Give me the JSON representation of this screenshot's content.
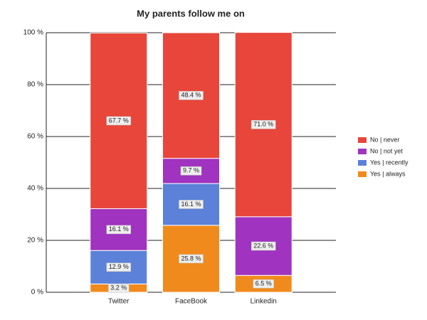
{
  "chart_data": {
    "type": "stacked_bar",
    "title": "My parents follow me on",
    "categories": [
      "Twitter",
      "FaceBook",
      "Linkedin"
    ],
    "series": [
      {
        "name": "Yes | always",
        "color": "#f08a1c",
        "values": [
          3.2,
          25.8,
          6.5
        ],
        "value_labels": [
          "3.2 %",
          "25.8 %",
          "6.5 %"
        ]
      },
      {
        "name": "Yes | recently",
        "color": "#5b82d8",
        "values": [
          12.9,
          16.1,
          null
        ],
        "value_labels": [
          "12.9 %",
          "16.1 %",
          null
        ]
      },
      {
        "name": "No | not yet",
        "color": "#a033c0",
        "values": [
          16.1,
          9.7,
          22.6
        ],
        "value_labels": [
          "16.1 %",
          "9.7 %",
          "22.6 %"
        ]
      },
      {
        "name": "No | never",
        "color": "#e8463a",
        "values": [
          67.7,
          48.4,
          71.0
        ],
        "value_labels": [
          "67.7 %",
          "48.4 %",
          "71.0 %"
        ]
      }
    ],
    "ylim": [
      0,
      100
    ],
    "yticks": [
      {
        "value": 0,
        "label": "0 %"
      },
      {
        "value": 20,
        "label": "20 %"
      },
      {
        "value": 40,
        "label": "40 %"
      },
      {
        "value": 60,
        "label": "60 %"
      },
      {
        "value": 80,
        "label": "80 %"
      },
      {
        "value": 100,
        "label": "100 %"
      }
    ],
    "grid": true,
    "legend": "right"
  }
}
